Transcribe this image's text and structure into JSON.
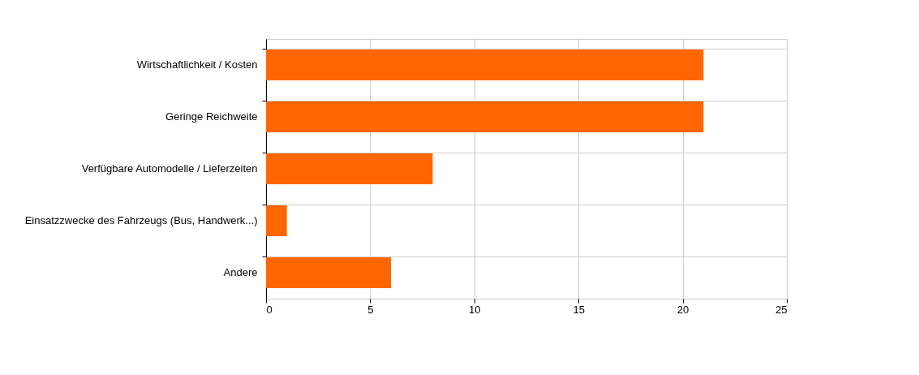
{
  "chart_data": {
    "type": "bar",
    "orientation": "horizontal",
    "categories": [
      "Wirtschaftlichkeit / Kosten",
      "Geringe Reichweite",
      "Verfügbare Automodelle / Lieferzeiten",
      "Einsatzzwecke des Fahrzeugs (Bus, Handwerk...)",
      "Andere"
    ],
    "values": [
      21,
      21,
      8,
      1,
      6
    ],
    "color": "#ff6600",
    "xlim": [
      0,
      25
    ],
    "xticks": [
      0,
      5,
      10,
      15,
      20,
      25
    ],
    "grid": true
  }
}
